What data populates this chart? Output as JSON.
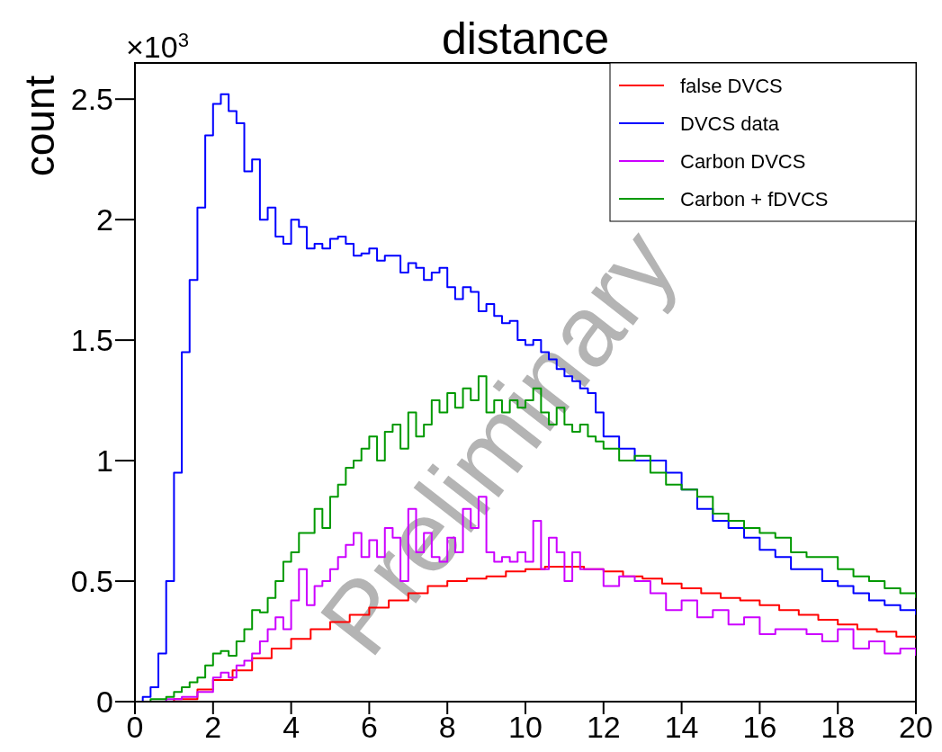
{
  "chart_data": {
    "type": "step",
    "title": "distance",
    "ylabel": "count",
    "annotations": [
      "×10$^{3}$",
      "Preliminary"
    ],
    "xlim": [
      0,
      20
    ],
    "xticks": [
      0,
      2,
      4,
      6,
      8,
      10,
      12,
      14,
      16,
      18,
      20
    ],
    "ylim": [
      0,
      2.65
    ],
    "yticks": [
      0,
      0.5,
      1,
      1.5,
      2,
      2.5
    ],
    "grid": false,
    "legend": "top right",
    "marker": "none",
    "line_style": "solid",
    "series": [
      {
        "name": "false DVCS",
        "color": "#ff0000",
        "x": [
          0,
          1,
          1.6,
          2,
          2.5,
          3,
          3.5,
          4,
          4.5,
          5,
          5.5,
          6,
          6.5,
          7,
          7.5,
          8,
          8.5,
          9,
          9.5,
          10,
          10.5,
          11,
          11.5,
          12,
          12.5,
          13,
          13.5,
          14,
          14.5,
          15,
          15.5,
          16,
          16.5,
          17,
          17.5,
          18,
          18.5,
          19,
          19.5,
          20
        ],
        "values": [
          0,
          0.01,
          0.05,
          0.09,
          0.13,
          0.18,
          0.22,
          0.26,
          0.3,
          0.33,
          0.36,
          0.39,
          0.42,
          0.45,
          0.48,
          0.5,
          0.51,
          0.52,
          0.54,
          0.55,
          0.56,
          0.56,
          0.55,
          0.54,
          0.52,
          0.51,
          0.49,
          0.47,
          0.45,
          0.43,
          0.42,
          0.4,
          0.38,
          0.36,
          0.34,
          0.32,
          0.3,
          0.29,
          0.27,
          0.26
        ]
      },
      {
        "name": "DVCS data",
        "color": "#0000ff",
        "x": [
          0,
          0.2,
          0.4,
          0.6,
          0.8,
          1,
          1.2,
          1.4,
          1.6,
          1.8,
          2,
          2.2,
          2.4,
          2.6,
          2.8,
          3,
          3.2,
          3.4,
          3.6,
          3.8,
          4,
          4.2,
          4.4,
          4.6,
          4.8,
          5,
          5.2,
          5.4,
          5.6,
          5.8,
          6,
          6.2,
          6.4,
          6.6,
          6.8,
          7,
          7.2,
          7.4,
          7.6,
          7.8,
          8,
          8.2,
          8.4,
          8.6,
          8.8,
          9,
          9.2,
          9.4,
          9.6,
          9.8,
          10,
          10.2,
          10.4,
          10.6,
          10.8,
          11,
          11.2,
          11.4,
          11.6,
          11.8,
          12,
          12.4,
          12.8,
          13.2,
          13.6,
          14,
          14.4,
          14.8,
          15.2,
          15.6,
          16,
          16.4,
          16.8,
          17.2,
          17.6,
          18,
          18.4,
          18.8,
          19.2,
          19.6,
          20
        ],
        "values": [
          0,
          0.02,
          0.06,
          0.2,
          0.5,
          0.95,
          1.45,
          1.75,
          2.05,
          2.35,
          2.48,
          2.52,
          2.45,
          2.4,
          2.2,
          2.25,
          2,
          2.05,
          1.93,
          1.9,
          2,
          1.97,
          1.88,
          1.9,
          1.88,
          1.92,
          1.93,
          1.9,
          1.85,
          1.86,
          1.88,
          1.83,
          1.85,
          1.85,
          1.78,
          1.82,
          1.8,
          1.75,
          1.78,
          1.8,
          1.72,
          1.67,
          1.72,
          1.7,
          1.62,
          1.65,
          1.6,
          1.57,
          1.58,
          1.5,
          1.48,
          1.5,
          1.45,
          1.42,
          1.38,
          1.35,
          1.33,
          1.3,
          1.28,
          1.2,
          1.1,
          1.05,
          1,
          1,
          0.95,
          0.88,
          0.8,
          0.75,
          0.72,
          0.68,
          0.63,
          0.6,
          0.55,
          0.55,
          0.5,
          0.48,
          0.45,
          0.42,
          0.4,
          0.38,
          0.36
        ]
      },
      {
        "name": "Carbon DVCS",
        "color": "#cc00ff",
        "x": [
          0,
          0.4,
          0.8,
          1.2,
          1.6,
          2,
          2.2,
          2.4,
          2.6,
          2.8,
          3,
          3.2,
          3.4,
          3.6,
          3.8,
          4,
          4.2,
          4.4,
          4.6,
          4.8,
          5,
          5.2,
          5.4,
          5.6,
          5.8,
          6,
          6.2,
          6.4,
          6.6,
          6.8,
          7,
          7.2,
          7.4,
          7.6,
          7.8,
          8,
          8.2,
          8.4,
          8.6,
          8.8,
          9,
          9.2,
          9.4,
          9.6,
          9.8,
          10,
          10.2,
          10.4,
          10.6,
          10.8,
          11,
          11.2,
          11.4,
          11.6,
          11.8,
          12,
          12.4,
          12.8,
          13.2,
          13.6,
          14,
          14.4,
          14.8,
          15.2,
          15.6,
          16,
          16.4,
          16.8,
          17.2,
          17.6,
          18,
          18.4,
          18.8,
          19.2,
          19.6,
          20
        ],
        "values": [
          0,
          0,
          0.01,
          0.02,
          0.04,
          0.1,
          0.12,
          0.1,
          0.15,
          0.17,
          0.2,
          0.25,
          0.3,
          0.35,
          0.3,
          0.42,
          0.55,
          0.4,
          0.48,
          0.5,
          0.55,
          0.6,
          0.65,
          0.7,
          0.6,
          0.67,
          0.6,
          0.72,
          0.68,
          0.5,
          0.8,
          0.62,
          0.7,
          0.6,
          0.58,
          0.68,
          0.62,
          0.8,
          0.72,
          0.85,
          0.62,
          0.58,
          0.6,
          0.58,
          0.62,
          0.58,
          0.75,
          0.55,
          0.68,
          0.62,
          0.5,
          0.62,
          0.55,
          0.55,
          0.55,
          0.48,
          0.52,
          0.5,
          0.45,
          0.38,
          0.42,
          0.35,
          0.38,
          0.32,
          0.35,
          0.28,
          0.3,
          0.3,
          0.28,
          0.25,
          0.3,
          0.22,
          0.25,
          0.2,
          0.22,
          0.19
        ]
      },
      {
        "name": "Carbon + fDVCS",
        "color": "#009900",
        "x": [
          0,
          0.4,
          0.8,
          1,
          1.2,
          1.4,
          1.6,
          1.8,
          2,
          2.2,
          2.4,
          2.6,
          2.8,
          3,
          3.2,
          3.4,
          3.6,
          3.8,
          4,
          4.2,
          4.4,
          4.6,
          4.8,
          5,
          5.2,
          5.4,
          5.6,
          5.8,
          6,
          6.2,
          6.4,
          6.6,
          6.8,
          7,
          7.2,
          7.4,
          7.6,
          7.8,
          8,
          8.2,
          8.4,
          8.6,
          8.8,
          9,
          9.2,
          9.4,
          9.6,
          9.8,
          10,
          10.2,
          10.4,
          10.6,
          10.8,
          11,
          11.2,
          11.4,
          11.6,
          11.8,
          12,
          12.4,
          12.8,
          13.2,
          13.6,
          14,
          14.4,
          14.8,
          15.2,
          15.6,
          16,
          16.4,
          16.8,
          17.2,
          17.6,
          18,
          18.4,
          18.8,
          19.2,
          19.6,
          20
        ],
        "values": [
          0,
          0.01,
          0.02,
          0.04,
          0.06,
          0.08,
          0.1,
          0.15,
          0.2,
          0.21,
          0.19,
          0.25,
          0.3,
          0.38,
          0.37,
          0.43,
          0.5,
          0.58,
          0.62,
          0.7,
          0.7,
          0.8,
          0.72,
          0.85,
          0.9,
          0.97,
          1,
          1.05,
          1.1,
          1,
          1.12,
          1.15,
          1.05,
          1.2,
          1.1,
          1.15,
          1.25,
          1.2,
          1.28,
          1.22,
          1.3,
          1.25,
          1.35,
          1.2,
          1.25,
          1.2,
          1.25,
          1.22,
          1.25,
          1.3,
          1.2,
          1.15,
          1.22,
          1.15,
          1.12,
          1.15,
          1.1,
          1.08,
          1.05,
          1,
          1.02,
          0.95,
          0.9,
          0.88,
          0.85,
          0.78,
          0.75,
          0.72,
          0.7,
          0.68,
          0.62,
          0.6,
          0.6,
          0.55,
          0.52,
          0.5,
          0.47,
          0.45,
          0.43
        ]
      }
    ]
  }
}
